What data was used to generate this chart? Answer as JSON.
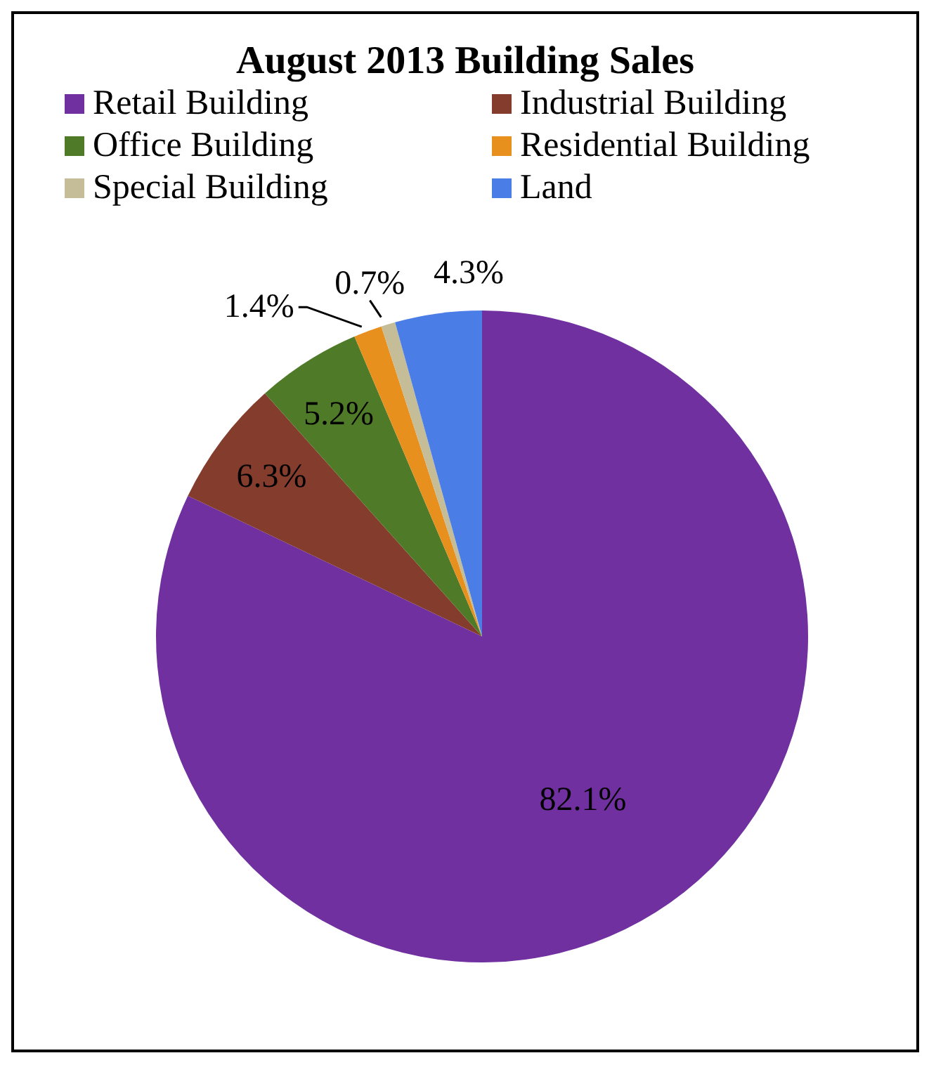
{
  "chart_data": {
    "type": "pie",
    "title": "August 2013 Building Sales",
    "categories": [
      "Retail Building",
      "Industrial Building",
      "Office Building",
      "Residential Building",
      "Special Building",
      "Land"
    ],
    "values": [
      82.1,
      6.3,
      5.2,
      1.4,
      0.7,
      4.3
    ],
    "colors": [
      "#7030a0",
      "#843c2c",
      "#4f7a28",
      "#e8901e",
      "#c4bd97",
      "#4a7de6"
    ],
    "value_labels": [
      "82.1%",
      "6.3%",
      "5.2%",
      "1.4%",
      "0.7%",
      "4.3%"
    ],
    "legend": "top"
  }
}
